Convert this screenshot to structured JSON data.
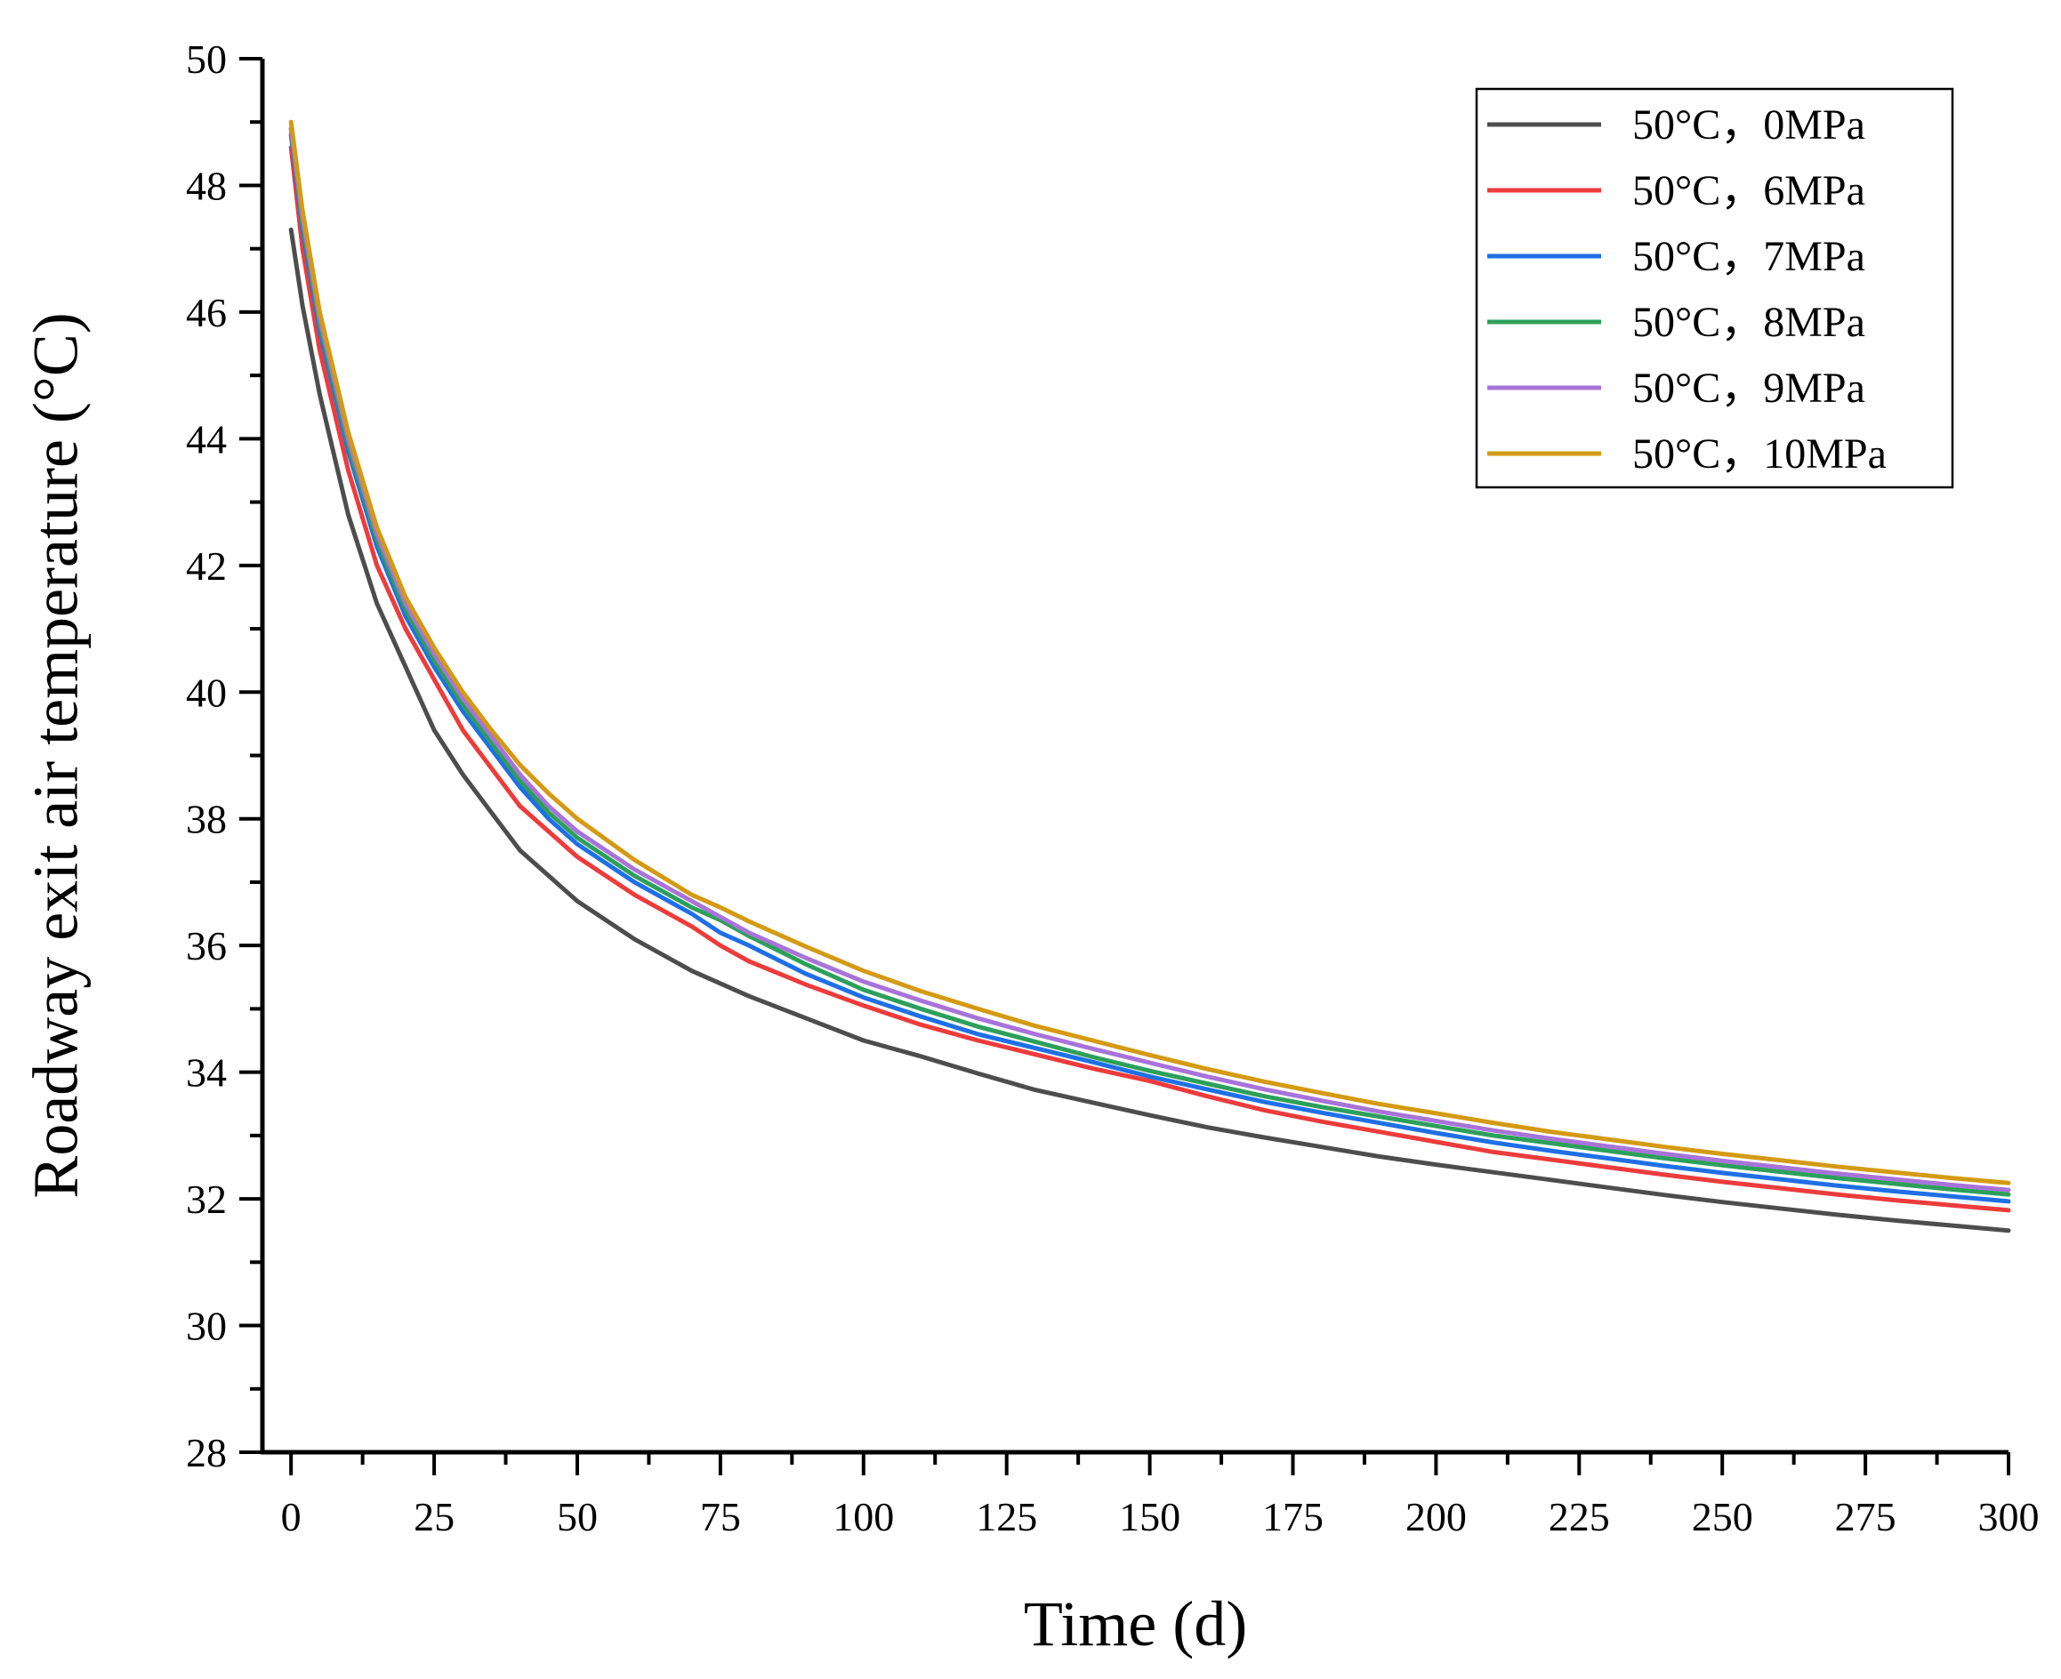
{
  "chart_data": {
    "type": "line",
    "title": "",
    "xlabel": "Time (d)",
    "ylabel": "Roadway exit air temperature (°C)",
    "xlim": [
      -5,
      300
    ],
    "ylim": [
      28,
      50
    ],
    "xticks": [
      0,
      25,
      50,
      75,
      100,
      125,
      150,
      175,
      200,
      225,
      250,
      275,
      300
    ],
    "yticks": [
      28,
      30,
      32,
      34,
      36,
      38,
      40,
      42,
      44,
      46,
      48,
      50
    ],
    "grid": false,
    "legend_position": "top-right",
    "x": [
      0,
      2,
      5,
      10,
      15,
      20,
      25,
      30,
      35,
      40,
      45,
      50,
      60,
      70,
      75,
      80,
      90,
      100,
      110,
      120,
      130,
      140,
      150,
      160,
      170,
      180,
      190,
      200,
      210,
      220,
      230,
      240,
      250,
      260,
      270,
      280,
      290,
      300
    ],
    "series": [
      {
        "name": "50°C，0MPa",
        "color": "#4d4d4d",
        "values": [
          47.3,
          46.1,
          44.7,
          42.8,
          41.4,
          40.4,
          39.4,
          38.7,
          38.1,
          37.5,
          37.1,
          36.7,
          36.1,
          35.6,
          35.4,
          35.2,
          34.85,
          34.5,
          34.25,
          33.98,
          33.72,
          33.52,
          33.32,
          33.13,
          32.97,
          32.82,
          32.67,
          32.54,
          32.42,
          32.3,
          32.18,
          32.06,
          31.95,
          31.85,
          31.75,
          31.66,
          31.58,
          31.5
        ]
      },
      {
        "name": "50°C，6MPa",
        "color": "#ee3b3b",
        "values": [
          48.6,
          47.0,
          45.4,
          43.5,
          42.0,
          41.0,
          40.2,
          39.4,
          38.8,
          38.2,
          37.8,
          37.4,
          36.8,
          36.3,
          36.0,
          35.75,
          35.38,
          35.05,
          34.75,
          34.5,
          34.28,
          34.06,
          33.86,
          33.62,
          33.4,
          33.22,
          33.06,
          32.9,
          32.74,
          32.62,
          32.5,
          32.38,
          32.27,
          32.17,
          32.07,
          31.98,
          31.9,
          31.82
        ]
      },
      {
        "name": "50°C，7MPa",
        "color": "#1f6fe6",
        "values": [
          48.8,
          47.3,
          45.7,
          43.8,
          42.3,
          41.2,
          40.4,
          39.7,
          39.1,
          38.5,
          38.0,
          37.6,
          37.0,
          36.5,
          36.2,
          36.0,
          35.55,
          35.18,
          34.88,
          34.6,
          34.38,
          34.16,
          33.93,
          33.73,
          33.53,
          33.36,
          33.2,
          33.04,
          32.89,
          32.76,
          32.64,
          32.52,
          32.41,
          32.31,
          32.21,
          32.12,
          32.04,
          31.96
        ]
      },
      {
        "name": "50°C，8MPa",
        "color": "#2ca05a",
        "values": [
          48.9,
          47.4,
          45.8,
          43.9,
          42.4,
          41.3,
          40.5,
          39.8,
          39.2,
          38.6,
          38.1,
          37.7,
          37.1,
          36.6,
          36.4,
          36.15,
          35.7,
          35.3,
          35.0,
          34.72,
          34.48,
          34.24,
          34.02,
          33.82,
          33.62,
          33.45,
          33.3,
          33.15,
          33.0,
          32.88,
          32.76,
          32.64,
          32.53,
          32.43,
          32.33,
          32.24,
          32.15,
          32.07
        ]
      },
      {
        "name": "50°C，9MPa",
        "color": "#a873d9",
        "values": [
          48.9,
          47.5,
          45.9,
          44.0,
          42.5,
          41.4,
          40.6,
          39.9,
          39.3,
          38.7,
          38.2,
          37.8,
          37.2,
          36.7,
          36.45,
          36.2,
          35.8,
          35.43,
          35.13,
          34.85,
          34.6,
          34.37,
          34.15,
          33.93,
          33.73,
          33.55,
          33.38,
          33.23,
          33.08,
          32.95,
          32.83,
          32.71,
          32.6,
          32.5,
          32.4,
          32.31,
          32.22,
          32.14
        ]
      },
      {
        "name": "50°C，10MPa",
        "color": "#d49a14",
        "values": [
          49.0,
          47.6,
          46.0,
          44.1,
          42.6,
          41.5,
          40.7,
          40.0,
          39.4,
          38.85,
          38.4,
          38.0,
          37.35,
          36.8,
          36.6,
          36.38,
          35.98,
          35.6,
          35.28,
          35.0,
          34.73,
          34.5,
          34.27,
          34.05,
          33.85,
          33.67,
          33.5,
          33.35,
          33.2,
          33.06,
          32.94,
          32.82,
          32.71,
          32.61,
          32.51,
          32.42,
          32.33,
          32.25
        ]
      }
    ]
  }
}
